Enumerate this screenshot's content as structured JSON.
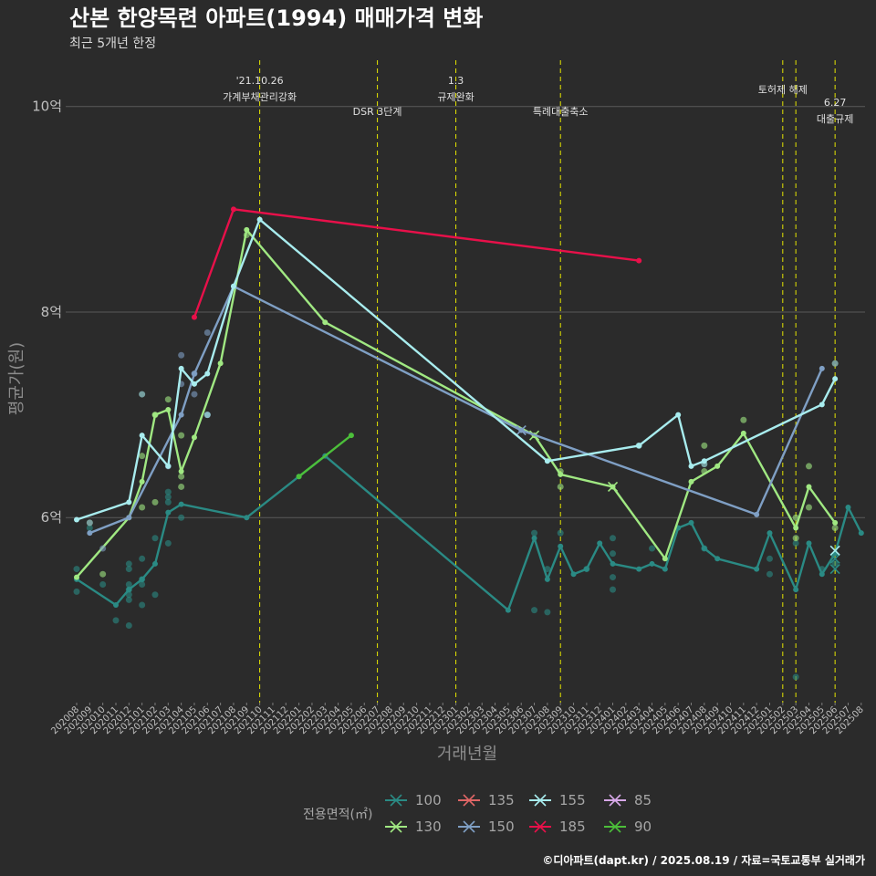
{
  "colors": {
    "background": "#2b2b2b",
    "grid": "#5a5a5a",
    "event_line": "#e6e600",
    "text": "#e6e6e6"
  },
  "chart_data": {
    "type": "line",
    "title": "산본 한양목련 아파트(1994) 매매가격 변화",
    "subtitle": "최근 5개년 한정",
    "xlabel": "거래년월",
    "ylabel": "평균가(원)",
    "x_categories": [
      "202008",
      "202009",
      "202010",
      "202011",
      "202012",
      "202101",
      "202102",
      "202103",
      "202104",
      "202105",
      "202106",
      "202107",
      "202108",
      "202109",
      "202110",
      "202111",
      "202112",
      "202201",
      "202202",
      "202203",
      "202204",
      "202205",
      "202206",
      "202207",
      "202208",
      "202209",
      "202210",
      "202211",
      "202212",
      "202301",
      "202302",
      "202303",
      "202304",
      "202305",
      "202306",
      "202307",
      "202308",
      "202309",
      "202310",
      "202311",
      "202312",
      "202401",
      "202402",
      "202403",
      "202404",
      "202405",
      "202406",
      "202407",
      "202408",
      "202409",
      "202410",
      "202411",
      "202412",
      "202501",
      "202502",
      "202503",
      "202504",
      "202505",
      "202506",
      "202507",
      "202508"
    ],
    "y_ticks": [
      {
        "value": 6,
        "label": "6억"
      },
      {
        "value": 8,
        "label": "8억"
      },
      {
        "value": 10,
        "label": "10억"
      }
    ],
    "ylim": [
      4.2,
      10.45
    ],
    "events": [
      {
        "x": 14.0,
        "labels": [
          "'21.10.26",
          "가계부채관리강화"
        ],
        "level": "top"
      },
      {
        "x": 23.0,
        "labels": [
          "DSR 3단계"
        ],
        "level": "low"
      },
      {
        "x": 29.0,
        "labels": [
          "1.3",
          "규제완화"
        ],
        "level": "top"
      },
      {
        "x": 37.0,
        "labels": [
          "특례대출축소"
        ],
        "level": "low"
      },
      {
        "x": 54.0,
        "labels": [
          "토허제 해제"
        ],
        "level": "mid"
      },
      {
        "x": 55.0,
        "labels": [],
        "level": "none"
      },
      {
        "x": 58.0,
        "labels": [
          "6.27",
          "대출규제"
        ],
        "level": "sub"
      }
    ],
    "series": [
      {
        "name": "100",
        "color": "#2a8a84",
        "points": [
          [
            0,
            5.4
          ],
          [
            3,
            5.15
          ],
          [
            4,
            5.3
          ],
          [
            5,
            5.4
          ],
          [
            6,
            5.55
          ],
          [
            7,
            6.05
          ],
          [
            8,
            6.13
          ],
          [
            13,
            6.0
          ],
          [
            17,
            6.4
          ],
          [
            19,
            6.6
          ],
          [
            33,
            5.1
          ],
          [
            35,
            5.8
          ],
          [
            36,
            5.4
          ],
          [
            37,
            5.72
          ],
          [
            38,
            5.45
          ],
          [
            39,
            5.5
          ],
          [
            40,
            5.75
          ],
          [
            41,
            5.55
          ],
          [
            43,
            5.5
          ],
          [
            44,
            5.55
          ],
          [
            45,
            5.5
          ],
          [
            46,
            5.9
          ],
          [
            47,
            5.95
          ],
          [
            48,
            5.7
          ],
          [
            49,
            5.6
          ],
          [
            52,
            5.5
          ],
          [
            53,
            5.85
          ],
          [
            55,
            5.3
          ],
          [
            56,
            5.75
          ],
          [
            57,
            5.45
          ],
          [
            58,
            5.65
          ],
          [
            59,
            6.1
          ],
          [
            60,
            5.85
          ]
        ],
        "scatter": [
          [
            0,
            5.5
          ],
          [
            0,
            5.28
          ],
          [
            1,
            5.9
          ],
          [
            2,
            5.35
          ],
          [
            3,
            5.0
          ],
          [
            4,
            5.2
          ],
          [
            4,
            5.3
          ],
          [
            4,
            5.35
          ],
          [
            4,
            5.25
          ],
          [
            4,
            4.95
          ],
          [
            4,
            5.5
          ],
          [
            4,
            5.55
          ],
          [
            5,
            5.15
          ],
          [
            5,
            5.35
          ],
          [
            5,
            5.4
          ],
          [
            5,
            5.6
          ],
          [
            6,
            5.25
          ],
          [
            6,
            5.8
          ],
          [
            7,
            5.75
          ],
          [
            7,
            6.15
          ],
          [
            7,
            6.2
          ],
          [
            7,
            6.25
          ],
          [
            8,
            6.0
          ],
          [
            35,
            5.1
          ],
          [
            35,
            5.85
          ],
          [
            36,
            5.08
          ],
          [
            36,
            5.5
          ],
          [
            37,
            5.85
          ],
          [
            39,
            5.5
          ],
          [
            41,
            5.8
          ],
          [
            41,
            5.3
          ],
          [
            41,
            5.42
          ],
          [
            41,
            5.65
          ],
          [
            44,
            5.7
          ],
          [
            48,
            5.7
          ],
          [
            53,
            5.6
          ],
          [
            53,
            5.45
          ],
          [
            55,
            4.45
          ],
          [
            55,
            5.75
          ],
          [
            57,
            5.5
          ],
          [
            58,
            5.55
          ]
        ],
        "cross_markers": [
          [
            58,
            5.5
          ],
          [
            58,
            5.6
          ]
        ]
      },
      {
        "name": "130",
        "color": "#a0e882",
        "points": [
          [
            0,
            5.42
          ],
          [
            4,
            6.0
          ],
          [
            5,
            6.35
          ],
          [
            6,
            7.0
          ],
          [
            7,
            7.05
          ],
          [
            8,
            6.45
          ],
          [
            9,
            6.78
          ],
          [
            11,
            7.5
          ],
          [
            13,
            8.8
          ],
          [
            19,
            7.9
          ],
          [
            35,
            6.8
          ],
          [
            37,
            6.42
          ],
          [
            41,
            6.3
          ],
          [
            45,
            5.6
          ],
          [
            47,
            6.35
          ],
          [
            49,
            6.5
          ],
          [
            51,
            6.82
          ],
          [
            55,
            5.9
          ],
          [
            56,
            6.3
          ],
          [
            58,
            5.95
          ]
        ],
        "scatter": [
          [
            1,
            5.95
          ],
          [
            2,
            5.45
          ],
          [
            5,
            6.1
          ],
          [
            5,
            6.6
          ],
          [
            6,
            6.15
          ],
          [
            6,
            7.0
          ],
          [
            7,
            7.15
          ],
          [
            8,
            6.3
          ],
          [
            8,
            6.4
          ],
          [
            8,
            6.8
          ],
          [
            13,
            8.75
          ],
          [
            37,
            6.45
          ],
          [
            37,
            6.3
          ],
          [
            48,
            6.45
          ],
          [
            48,
            6.7
          ],
          [
            51,
            6.95
          ],
          [
            55,
            6.0
          ],
          [
            55,
            5.8
          ],
          [
            56,
            6.1
          ],
          [
            56,
            6.5
          ],
          [
            58,
            5.9
          ],
          [
            58,
            7.5
          ]
        ],
        "cross_markers": [
          [
            35,
            6.8
          ],
          [
            41,
            6.3
          ]
        ]
      },
      {
        "name": "135",
        "color": "#e06666",
        "points": [],
        "scatter": [],
        "cross_markers": []
      },
      {
        "name": "150",
        "color": "#7f9fc4",
        "points": [
          [
            1,
            5.85
          ],
          [
            4,
            6.0
          ],
          [
            8,
            7.0
          ],
          [
            9,
            7.4
          ],
          [
            12,
            8.25
          ],
          [
            34,
            6.85
          ],
          [
            52,
            6.03
          ],
          [
            57,
            7.45
          ]
        ],
        "scatter": [
          [
            1,
            5.95
          ],
          [
            2,
            5.7
          ],
          [
            7,
            6.5
          ],
          [
            8,
            7.58
          ],
          [
            8,
            7.3
          ],
          [
            9,
            7.2
          ],
          [
            9,
            7.4
          ],
          [
            10,
            7.8
          ],
          [
            10,
            7.0
          ],
          [
            58,
            7.5
          ]
        ],
        "cross_markers": [
          [
            34,
            6.85
          ]
        ]
      },
      {
        "name": "155",
        "color": "#a8ecee",
        "points": [
          [
            0,
            5.98
          ],
          [
            4,
            6.15
          ],
          [
            5,
            6.8
          ],
          [
            7,
            6.5
          ],
          [
            8,
            7.45
          ],
          [
            9,
            7.3
          ],
          [
            10,
            7.4
          ],
          [
            12,
            8.25
          ],
          [
            14,
            8.9
          ],
          [
            36,
            6.55
          ],
          [
            43,
            6.7
          ],
          [
            46,
            7.0
          ],
          [
            47,
            6.5
          ],
          [
            48,
            6.55
          ],
          [
            57,
            7.1
          ],
          [
            58,
            7.35
          ]
        ],
        "scatter": [
          [
            5,
            7.2
          ],
          [
            10,
            7.0
          ],
          [
            43,
            6.7
          ],
          [
            48,
            6.52
          ]
        ],
        "cross_markers": [
          [
            58,
            5.68
          ]
        ]
      },
      {
        "name": "185",
        "color": "#e8104a",
        "points": [
          [
            9,
            7.95
          ],
          [
            12,
            9.0
          ],
          [
            43,
            8.5
          ]
        ],
        "scatter": [],
        "cross_markers": []
      },
      {
        "name": "85",
        "color": "#d7a8e8",
        "points": [],
        "scatter": [],
        "cross_markers": []
      },
      {
        "name": "90",
        "color": "#4cbf3a",
        "points": [
          [
            17,
            6.4
          ],
          [
            21,
            6.8
          ]
        ],
        "scatter": [],
        "cross_markers": []
      }
    ],
    "legend": {
      "title": "전용면적(㎡)",
      "position": "bottom"
    },
    "grid": true
  },
  "caption": "©디아파트(dapt.kr) / 2025.08.19 / 자료=국토교통부 실거래가"
}
